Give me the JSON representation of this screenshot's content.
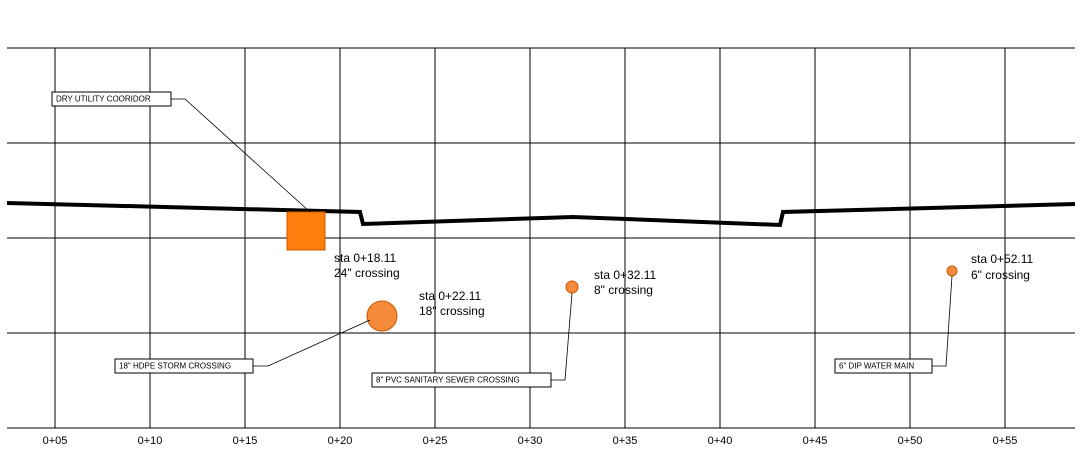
{
  "stations": [
    "0+05",
    "0+10",
    "0+15",
    "0+20",
    "0+25",
    "0+30",
    "0+35",
    "0+40",
    "0+45",
    "0+50",
    "0+55"
  ],
  "crossings": [
    {
      "station": "sta 0+18.11",
      "size": "24\" crossing"
    },
    {
      "station": "sta 0+22.11",
      "size": "18\" crossing"
    },
    {
      "station": "sta 0+32.11",
      "size": "8\" crossing"
    },
    {
      "station": "sta 0+52.11",
      "size": "6\" crossing"
    }
  ],
  "callouts": [
    "DRY UTILITY COORIDOR",
    "18\" HDPE STORM CROSSING",
    "8\" PVC SANITARY SEWER CROSSING",
    "6\" DIP WATER MAIN"
  ]
}
